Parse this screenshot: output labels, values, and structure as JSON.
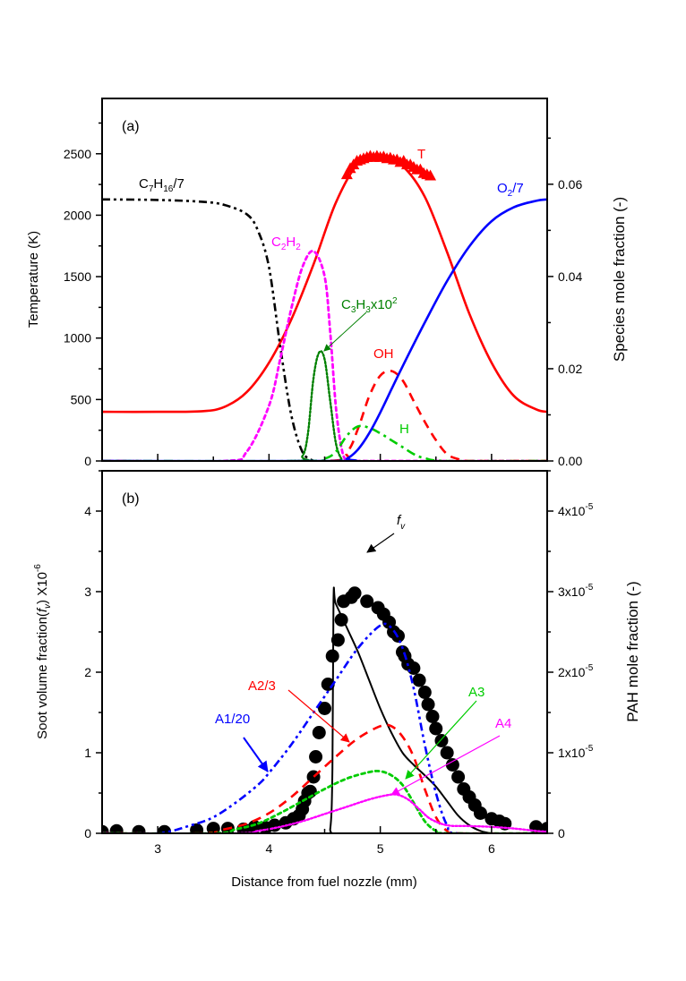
{
  "chart_data": [
    {
      "panel": "a",
      "panel_label": "(a)",
      "type": "line",
      "xlabel": "",
      "xlim": [
        2.5,
        6.5
      ],
      "x_ticks": [
        3,
        4,
        5,
        6
      ],
      "ylabel_left": "Temperature (K)",
      "ylim_left": [
        0,
        2950
      ],
      "y_ticks_left": [
        0,
        500,
        1000,
        1500,
        2000,
        2500
      ],
      "y_tick_labels_left": [
        "0",
        "500",
        "1000",
        "1500",
        "2000",
        "2500"
      ],
      "ylabel_right": "Species mole fraction (-)",
      "ylim_right": [
        0,
        0.0786
      ],
      "y_ticks_right": [
        0,
        0.02,
        0.04,
        0.06
      ],
      "y_tick_labels_right": [
        "0.00",
        "0.02",
        "0.04",
        "0.06"
      ],
      "series": [
        {
          "name": "T",
          "label": "T",
          "axis": "left",
          "color": "#ff0000",
          "style": "solid",
          "x": [
            2.5,
            3.0,
            3.4,
            3.6,
            3.8,
            4.0,
            4.2,
            4.4,
            4.6,
            4.8,
            5.0,
            5.2,
            5.4,
            5.6,
            5.8,
            6.0,
            6.2,
            6.4,
            6.5
          ],
          "y": [
            400,
            400,
            405,
            440,
            560,
            800,
            1150,
            1600,
            2100,
            2420,
            2480,
            2400,
            2150,
            1700,
            1200,
            800,
            530,
            420,
            400
          ]
        },
        {
          "name": "T_measured",
          "label": "T",
          "axis": "left",
          "color": "#ff0000",
          "style": "triangle-markers",
          "x": [
            4.7,
            4.73,
            4.76,
            4.79,
            4.82,
            4.85,
            4.88,
            4.91,
            4.94,
            4.97,
            5.0,
            5.03,
            5.06,
            5.09,
            5.12,
            5.15,
            5.18,
            5.21,
            5.24,
            5.27,
            5.3,
            5.33,
            5.36,
            5.39,
            5.42,
            5.45
          ],
          "y": [
            2330,
            2380,
            2410,
            2440,
            2450,
            2460,
            2470,
            2480,
            2470,
            2480,
            2470,
            2475,
            2460,
            2465,
            2450,
            2450,
            2430,
            2440,
            2410,
            2410,
            2390,
            2370,
            2370,
            2340,
            2330,
            2320
          ]
        },
        {
          "name": "C7H16/7",
          "axis": "right",
          "color": "#000000",
          "style": "dash-dot-dot",
          "x": [
            2.5,
            3.0,
            3.4,
            3.6,
            3.8,
            3.9,
            4.0,
            4.1,
            4.2,
            4.3,
            4.4
          ],
          "y": [
            0.0567,
            0.0566,
            0.0562,
            0.0555,
            0.0535,
            0.05,
            0.042,
            0.025,
            0.01,
            0.002,
            0.0
          ]
        },
        {
          "name": "C2H2",
          "axis": "right",
          "color": "#ff00ff",
          "style": "dot",
          "x": [
            2.5,
            3.6,
            3.8,
            4.0,
            4.1,
            4.2,
            4.3,
            4.4,
            4.5,
            4.55,
            4.6,
            4.65,
            4.7,
            4.8,
            6.5
          ],
          "y": [
            0.0,
            0.0,
            0.002,
            0.012,
            0.022,
            0.033,
            0.042,
            0.0455,
            0.04,
            0.028,
            0.012,
            0.003,
            0.0,
            0.0,
            0.0
          ]
        },
        {
          "name": "C3H3x10^2",
          "axis": "right",
          "color": "#008000",
          "style": "dense-dot",
          "x": [
            2.5,
            4.2,
            4.3,
            4.35,
            4.4,
            4.45,
            4.5,
            4.55,
            4.6,
            4.65,
            4.7,
            6.5
          ],
          "y": [
            0.0,
            0.0,
            0.001,
            0.006,
            0.018,
            0.0235,
            0.022,
            0.013,
            0.004,
            0.0005,
            0.0,
            0.0
          ]
        },
        {
          "name": "OH",
          "axis": "right",
          "color": "#ff0000",
          "style": "dash",
          "x": [
            2.5,
            4.5,
            4.7,
            4.8,
            4.9,
            5.0,
            5.1,
            5.2,
            5.3,
            5.4,
            5.5,
            5.6,
            5.7,
            5.8,
            6.5
          ],
          "y": [
            0.0,
            0.0,
            0.002,
            0.007,
            0.014,
            0.0185,
            0.0195,
            0.0175,
            0.013,
            0.0085,
            0.0045,
            0.0015,
            0.0004,
            0.0,
            0.0
          ]
        },
        {
          "name": "H",
          "axis": "right",
          "color": "#00cc00",
          "style": "dash-dot",
          "x": [
            2.5,
            4.3,
            4.5,
            4.6,
            4.7,
            4.8,
            4.9,
            5.0,
            5.1,
            5.2,
            5.3,
            5.4,
            5.6,
            6.5
          ],
          "y": [
            0.0,
            0.0,
            0.0005,
            0.002,
            0.0055,
            0.0075,
            0.0072,
            0.006,
            0.0045,
            0.003,
            0.0015,
            0.0006,
            0.0,
            0.0
          ]
        },
        {
          "name": "O2/7",
          "axis": "right",
          "color": "#0000ff",
          "style": "solid",
          "x": [
            2.5,
            4.6,
            4.7,
            4.8,
            4.9,
            5.0,
            5.1,
            5.2,
            5.4,
            5.6,
            5.8,
            6.0,
            6.2,
            6.4,
            6.5
          ],
          "y": [
            0.0,
            0.0,
            0.0005,
            0.0025,
            0.006,
            0.0105,
            0.0155,
            0.0205,
            0.03,
            0.039,
            0.0465,
            0.052,
            0.055,
            0.0564,
            0.0567
          ]
        }
      ],
      "annotations": [
        {
          "text": "T",
          "color": "#ff0000"
        },
        {
          "text": "O",
          "sub": "2",
          "after": "/7",
          "color": "#0000ff"
        },
        {
          "text": "C",
          "sub": "7",
          "mid": "H",
          "sub2": "16",
          "after": "/7",
          "color": "#000000"
        },
        {
          "text": "C",
          "sub": "2",
          "mid": "H",
          "sub2": "2",
          "color": "#ff00ff"
        },
        {
          "text": "C",
          "sub": "3",
          "mid": "H",
          "sub2": "3",
          "after": "x10",
          "sup": "2",
          "color": "#008000"
        },
        {
          "text": "OH",
          "color": "#ff0000"
        },
        {
          "text": "H",
          "color": "#00cc00"
        }
      ]
    },
    {
      "panel": "b",
      "panel_label": "(b)",
      "type": "line",
      "xlabel": "Distance from fuel nozzle (mm)",
      "xlim": [
        2.5,
        6.5
      ],
      "x_ticks": [
        3,
        4,
        5,
        6
      ],
      "x_tick_labels": [
        "3",
        "4",
        "5",
        "6"
      ],
      "ylabel_left": "Soot volume fraction(f_v) X10^-6",
      "ylim_left": [
        0,
        4.5
      ],
      "y_ticks_left": [
        0,
        1,
        2,
        3,
        4
      ],
      "y_tick_labels_left": [
        "0",
        "1",
        "2",
        "3",
        "4"
      ],
      "ylabel_right": "PAH mole fraction (-)",
      "ylim_right": [
        0,
        4.5e-05
      ],
      "y_ticks_right": [
        0,
        1e-05,
        2e-05,
        3e-05,
        4e-05
      ],
      "y_tick_labels_right": [
        "0",
        "1x10",
        "2x10",
        "3x10",
        "4x10"
      ],
      "y_tick_exp_right": "-5",
      "series": [
        {
          "name": "fv_model",
          "label": "f_v",
          "axis": "left",
          "color": "#000000",
          "style": "solid",
          "x": [
            2.5,
            4.5,
            4.55,
            4.57,
            4.58,
            4.6,
            4.7,
            4.8,
            4.9,
            5.0,
            5.1,
            5.2,
            5.3,
            5.4,
            5.5,
            5.6,
            5.7,
            5.8,
            5.9,
            6.0,
            6.1,
            6.5
          ],
          "y": [
            0.0,
            0.0,
            0.05,
            0.8,
            2.9,
            2.85,
            2.55,
            2.25,
            1.9,
            1.55,
            1.25,
            1.0,
            0.85,
            0.72,
            0.58,
            0.4,
            0.22,
            0.1,
            0.03,
            0.0,
            0.0,
            0.0
          ]
        },
        {
          "name": "fv_measured",
          "axis": "left",
          "color": "#000000",
          "style": "circle-markers",
          "x": [
            2.5,
            2.63,
            2.83,
            3.06,
            3.35,
            3.5,
            3.63,
            3.77,
            3.87,
            3.97,
            4.05,
            4.15,
            4.22,
            4.27,
            4.3,
            4.32,
            4.35,
            4.37,
            4.4,
            4.42,
            4.45,
            4.5,
            4.53,
            4.57,
            4.62,
            4.65,
            4.67,
            4.74,
            4.77,
            4.88,
            4.98,
            5.03,
            5.08,
            5.12,
            5.16,
            5.2,
            5.22,
            5.25,
            5.3,
            5.35,
            5.4,
            5.43,
            5.47,
            5.5,
            5.55,
            5.6,
            5.65,
            5.7,
            5.75,
            5.8,
            5.85,
            5.9,
            6.0,
            6.07,
            6.12,
            6.4,
            6.5
          ],
          "y": [
            0.02,
            0.03,
            0.02,
            0.02,
            0.04,
            0.06,
            0.06,
            0.05,
            0.08,
            0.07,
            0.1,
            0.13,
            0.18,
            0.22,
            0.3,
            0.4,
            0.5,
            0.52,
            0.7,
            0.95,
            1.25,
            1.55,
            1.85,
            2.2,
            2.4,
            2.65,
            2.88,
            2.93,
            2.98,
            2.88,
            2.8,
            2.72,
            2.62,
            2.5,
            2.45,
            2.25,
            2.2,
            2.1,
            2.05,
            1.9,
            1.75,
            1.6,
            1.45,
            1.3,
            1.15,
            1.0,
            0.85,
            0.7,
            0.55,
            0.45,
            0.35,
            0.25,
            0.18,
            0.15,
            0.12,
            0.08,
            0.06
          ]
        },
        {
          "name": "A1/20",
          "axis": "right",
          "color": "#0000ff",
          "style": "dash-dot-dot",
          "x": [
            2.5,
            3.0,
            3.3,
            3.5,
            3.7,
            3.9,
            4.0,
            4.2,
            4.4,
            4.6,
            4.8,
            5.0,
            5.1,
            5.2,
            5.3,
            5.4,
            5.5,
            5.6,
            5.7,
            6.5
          ],
          "y": [
            0.0,
            0.0,
            1e-06,
            2e-06,
            3.8e-06,
            6e-06,
            7.5e-06,
            1.1e-05,
            1.5e-05,
            1.9e-05,
            2.3e-05,
            2.58e-05,
            2.55e-05,
            2.3e-05,
            1.8e-05,
            1.1e-05,
            5e-06,
            1e-06,
            0.0,
            0.0
          ]
        },
        {
          "name": "A2/3",
          "axis": "right",
          "color": "#ff0000",
          "style": "dash",
          "x": [
            2.5,
            3.4,
            3.6,
            3.8,
            4.0,
            4.2,
            4.4,
            4.6,
            4.8,
            5.0,
            5.1,
            5.2,
            5.3,
            5.4,
            5.5,
            5.6,
            5.7,
            6.5
          ],
          "y": [
            0.0,
            0.0,
            5e-07,
            1.2e-06,
            2.5e-06,
            4.5e-06,
            7e-06,
            9.5e-06,
            1.18e-05,
            1.33e-05,
            1.33e-05,
            1.2e-05,
            9.5e-06,
            5.5e-06,
            2e-06,
            3e-07,
            0.0,
            0.0
          ]
        },
        {
          "name": "A3",
          "axis": "right",
          "color": "#00cc00",
          "style": "dot",
          "x": [
            2.5,
            3.5,
            3.7,
            3.9,
            4.1,
            4.3,
            4.5,
            4.7,
            4.9,
            5.0,
            5.1,
            5.2,
            5.3,
            5.4,
            5.5,
            5.6,
            6.5
          ],
          "y": [
            0.0,
            0.0,
            5e-07,
            1.2e-06,
            2.5e-06,
            4e-06,
            5.5e-06,
            6.8e-06,
            7.6e-06,
            7.7e-06,
            7.2e-06,
            6e-06,
            3.8e-06,
            1.5e-06,
            3e-07,
            0.0,
            0.0
          ]
        },
        {
          "name": "A4",
          "axis": "right",
          "color": "#ff00ff",
          "style": "dense-dot",
          "x": [
            2.5,
            3.7,
            3.9,
            4.1,
            4.3,
            4.5,
            4.7,
            4.9,
            5.05,
            5.15,
            5.25,
            5.35,
            5.45,
            5.6,
            5.8,
            6.0,
            6.2,
            6.4,
            6.5
          ],
          "y": [
            0.0,
            0.0,
            3e-07,
            8e-07,
            1.5e-06,
            2.4e-06,
            3.3e-06,
            4.2e-06,
            4.7e-06,
            4.8e-06,
            4.2e-06,
            3e-06,
            1.8e-06,
            1e-06,
            9e-07,
            8e-07,
            6e-07,
            3e-07,
            2e-07
          ]
        }
      ],
      "annotations": [
        {
          "text": "f",
          "sub": "v",
          "color": "#000000"
        },
        {
          "text": "A2/3",
          "color": "#ff0000"
        },
        {
          "text": "A1/20",
          "color": "#0000ff"
        },
        {
          "text": "A3",
          "color": "#00cc00"
        },
        {
          "text": "A4",
          "color": "#ff00ff"
        }
      ]
    }
  ],
  "labels": {
    "panel_a": "(a)",
    "panel_b": "(b)",
    "a_ylabel_left": "Temperature (K)",
    "a_ylabel_right": "Species mole fraction (-)",
    "b_ylabel_left_main": "Soot volume fraction(",
    "b_ylabel_left_f": "f",
    "b_ylabel_left_sub": "v",
    "b_ylabel_left_tail": ") X10",
    "b_ylabel_left_exp": "-6",
    "b_ylabel_right": "PAH mole fraction (-)",
    "xlabel": "Distance from fuel nozzle (mm)",
    "T": "T",
    "O2_O": "O",
    "O2_sub": "2",
    "O2_tail": "/7",
    "C7_C": "C",
    "C7_sub1": "7",
    "C7_H": "H",
    "C7_sub2": "16",
    "C7_tail": "/7",
    "C2_C": "C",
    "C2_sub1": "2",
    "C2_H": "H",
    "C2_sub2": "2",
    "C3_C": "C",
    "C3_sub1": "3",
    "C3_H": "H",
    "C3_sub2": "3",
    "C3_tail": "x10",
    "C3_sup": "2",
    "OH": "OH",
    "H": "H",
    "fv_f": "f",
    "fv_sub": "v",
    "A2_3": "A2/3",
    "A1_20": "A1/20",
    "A3": "A3",
    "A4": "A4"
  }
}
